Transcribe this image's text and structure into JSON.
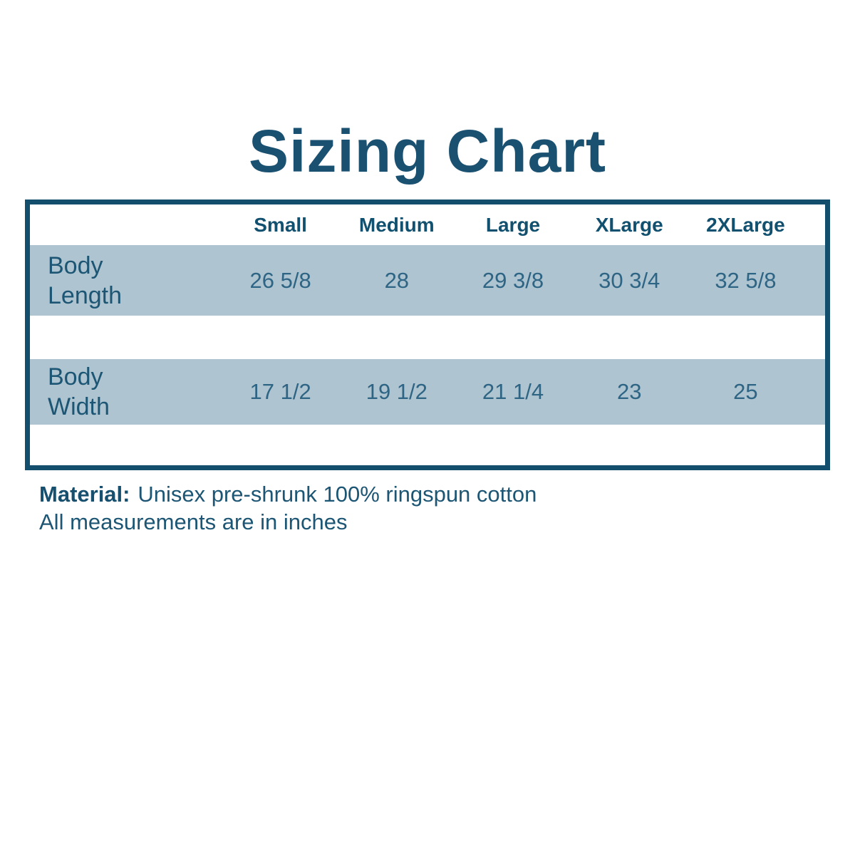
{
  "title": "Sizing Chart",
  "colors": {
    "border_dark_teal": "#134e6d",
    "title_text": "#1a5070",
    "header_text": "#11506e",
    "label_text": "#1c5674",
    "value_text": "#2e6484",
    "row_background": "#aec4d0",
    "page_background": "#ffffff"
  },
  "table": {
    "columns": [
      "Small",
      "Medium",
      "Large",
      "XLarge",
      "2XLarge"
    ],
    "rows": [
      {
        "label": "Body Length",
        "values": [
          "26 5/8",
          "28",
          "29 3/8",
          "30 3/4",
          "32 5/8"
        ]
      },
      {
        "label": "Body Width",
        "values": [
          "17 1/2",
          "19 1/2",
          "21 1/4",
          "23",
          "25"
        ]
      }
    ]
  },
  "footer": {
    "material_label": "Material:",
    "material_value": "Unisex pre-shrunk 100% ringspun cotton",
    "note": "All measurements are in inches"
  },
  "chart_data": {
    "type": "table",
    "title": "Sizing Chart",
    "columns": [
      "",
      "Small",
      "Medium",
      "Large",
      "XLarge",
      "2XLarge"
    ],
    "rows": [
      [
        "Body Length",
        "26 5/8",
        "28",
        "29 3/8",
        "30 3/4",
        "32 5/8"
      ],
      [
        "Body Width",
        "17 1/2",
        "19 1/2",
        "21 1/4",
        "23",
        "25"
      ]
    ],
    "units": "inches",
    "notes": [
      "Material: Unisex pre-shrunk 100% ringspun cotton",
      "All measurements are in inches"
    ]
  }
}
